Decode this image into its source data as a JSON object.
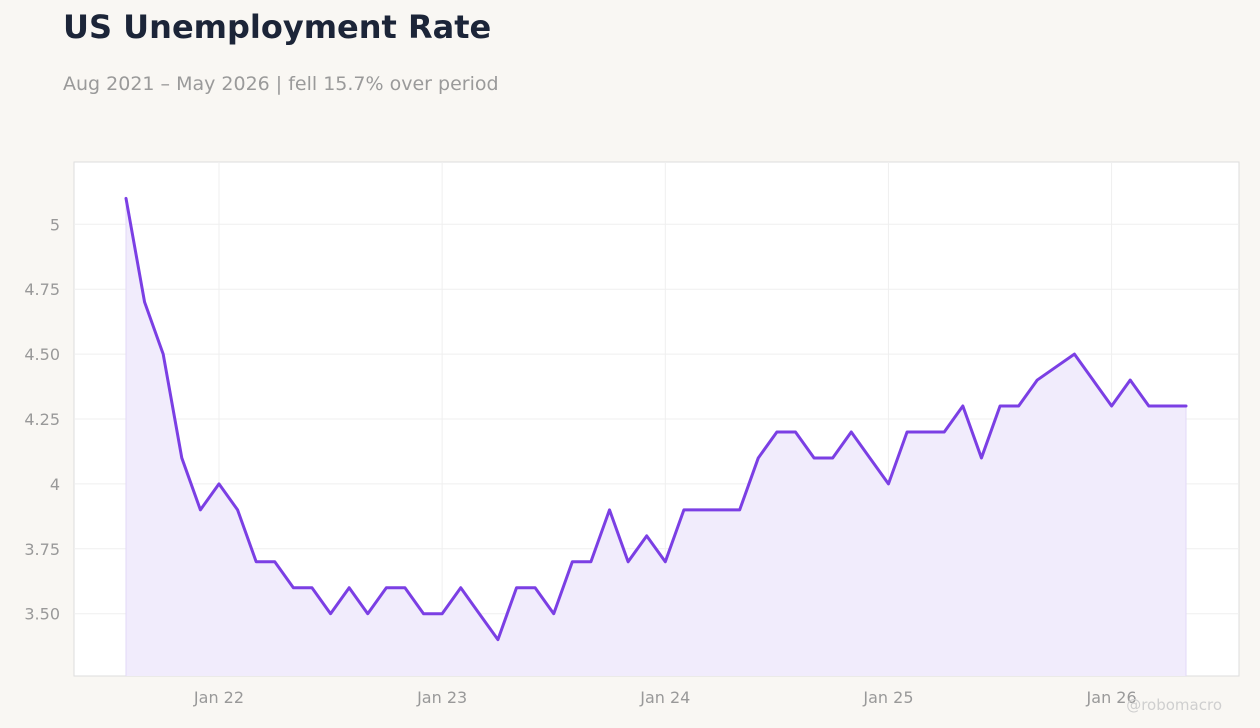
{
  "chart_data": {
    "type": "area",
    "title": "US Unemployment Rate",
    "subtitle": "Aug 2021 – May 2026 | fell 15.7% over period",
    "xlabel": "",
    "ylabel": "",
    "x_start": "2021-08",
    "x_end": "2026-05",
    "x": [
      "2021-08",
      "2021-09",
      "2021-10",
      "2021-11",
      "2021-12",
      "2022-01",
      "2022-02",
      "2022-03",
      "2022-04",
      "2022-05",
      "2022-06",
      "2022-07",
      "2022-08",
      "2022-09",
      "2022-10",
      "2022-11",
      "2022-12",
      "2023-01",
      "2023-02",
      "2023-03",
      "2023-04",
      "2023-05",
      "2023-06",
      "2023-07",
      "2023-08",
      "2023-09",
      "2023-10",
      "2023-11",
      "2023-12",
      "2024-01",
      "2024-02",
      "2024-03",
      "2024-04",
      "2024-05",
      "2024-06",
      "2024-07",
      "2024-08",
      "2024-09",
      "2024-10",
      "2024-11",
      "2024-12",
      "2025-01",
      "2025-02",
      "2025-03",
      "2025-04",
      "2025-05",
      "2025-06",
      "2025-07",
      "2025-08",
      "2025-09",
      "2025-10",
      "2025-11",
      "2025-12",
      "2026-01",
      "2026-02",
      "2026-03",
      "2026-04",
      "2026-05"
    ],
    "values": [
      5.1,
      4.7,
      4.5,
      4.1,
      3.9,
      4.0,
      3.9,
      3.7,
      3.7,
      3.6,
      3.6,
      3.5,
      3.6,
      3.5,
      3.6,
      3.6,
      3.5,
      3.5,
      3.6,
      3.5,
      3.4,
      3.6,
      3.6,
      3.5,
      3.7,
      3.7,
      3.9,
      3.7,
      3.8,
      3.7,
      3.9,
      3.9,
      3.9,
      3.9,
      4.1,
      4.2,
      4.2,
      4.1,
      4.1,
      4.2,
      4.1,
      4.0,
      4.2,
      4.2,
      4.2,
      4.3,
      4.1,
      4.3,
      4.3,
      4.4,
      4.45,
      4.5,
      4.4,
      4.3,
      4.4,
      4.3,
      4.3,
      4.3
    ],
    "x_ticks": [
      {
        "date": "2022-01",
        "label": "Jan 22"
      },
      {
        "date": "2023-01",
        "label": "Jan 23"
      },
      {
        "date": "2024-01",
        "label": "Jan 24"
      },
      {
        "date": "2025-01",
        "label": "Jan 25"
      },
      {
        "date": "2026-01",
        "label": "Jan 26"
      }
    ],
    "y_ticks": [
      {
        "value": 3.5,
        "label": "3.50"
      },
      {
        "value": 3.75,
        "label": "3.75"
      },
      {
        "value": 4.0,
        "label": "4"
      },
      {
        "value": 4.25,
        "label": "4.25"
      },
      {
        "value": 4.5,
        "label": "4.50"
      },
      {
        "value": 4.75,
        "label": "4.75"
      },
      {
        "value": 5.0,
        "label": "5"
      }
    ],
    "ylim": [
      3.26,
      5.24
    ],
    "grid": true,
    "line_color": "#7b3fe4",
    "fill_color": "#f1ecfc"
  },
  "watermark": "@robomacro"
}
